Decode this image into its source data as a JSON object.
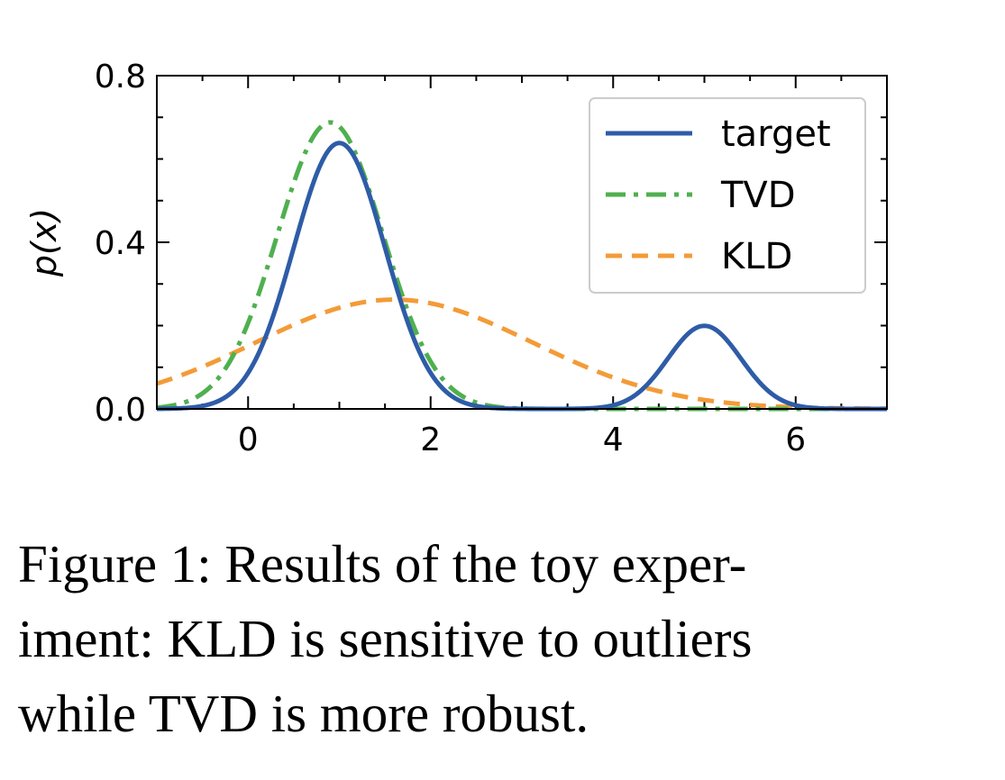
{
  "chart_data": {
    "type": "line",
    "xlabel": "",
    "ylabel": "p(x)",
    "xlim": [
      -1,
      7
    ],
    "ylim": [
      0,
      0.8
    ],
    "xticks": [
      0,
      2,
      4,
      6
    ],
    "yticks": [
      0.0,
      0.4,
      0.8
    ],
    "xtick_labels": [
      "0",
      "2",
      "4",
      "6"
    ],
    "ytick_labels": [
      "0.0",
      "0.4",
      "0.8"
    ],
    "grid": false,
    "legend_position": "top-right",
    "series": [
      {
        "name": "target",
        "style": "solid",
        "color": "#2e5ca7",
        "components": [
          {
            "weight": 0.8,
            "mean": 1.0,
            "std": 0.5
          },
          {
            "weight": 0.2,
            "mean": 5.0,
            "std": 0.4
          }
        ],
        "x": [
          -1,
          0,
          0.5,
          1,
          1.5,
          2,
          3,
          4,
          4.5,
          5,
          5.5,
          6,
          7
        ],
        "y": [
          0.0,
          0.09,
          0.39,
          0.64,
          0.39,
          0.09,
          0.0,
          0.01,
          0.09,
          0.2,
          0.09,
          0.01,
          0.0
        ]
      },
      {
        "name": "TVD",
        "style": "dashdot",
        "color": "#4fb04f",
        "components": [
          {
            "weight": 1.0,
            "mean": 0.9,
            "std": 0.58
          }
        ],
        "x": [
          -1,
          0,
          0.5,
          0.9,
          1.5,
          2,
          3,
          4,
          7
        ],
        "y": [
          0.01,
          0.21,
          0.54,
          0.69,
          0.41,
          0.11,
          0.0,
          0.0,
          0.0
        ]
      },
      {
        "name": "KLD",
        "style": "dashed",
        "color": "#f39b38",
        "components": [
          {
            "weight": 1.0,
            "mean": 1.6,
            "std": 1.52
          }
        ],
        "x": [
          -1,
          0,
          1,
          1.6,
          2,
          3,
          4,
          5,
          6,
          7
        ],
        "y": [
          0.06,
          0.15,
          0.24,
          0.26,
          0.25,
          0.17,
          0.07,
          0.02,
          0.0,
          0.0
        ]
      }
    ]
  },
  "caption": "Figure 1: Results of the toy exper-\niment: KLD is sensitive to outliers\nwhile TVD is more robust."
}
